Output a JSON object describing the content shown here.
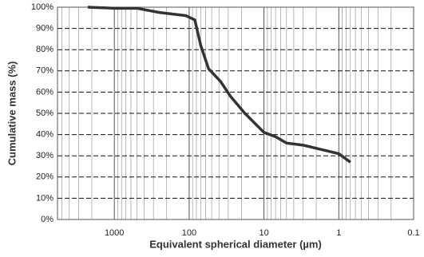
{
  "chart_data": {
    "type": "line",
    "x_label": "Equivalent spherical diameter (µm)",
    "y_label": "Cumulative mass (%)",
    "x_log": true,
    "x_reversed": true,
    "grid": true,
    "minor_grid": true,
    "xlim": [
      5750,
      0.1
    ],
    "xticks": [
      1000,
      100,
      10,
      1,
      0.1
    ],
    "ylim": [
      0,
      100
    ],
    "yticks": [
      {
        "value": 0,
        "label": "0%"
      },
      {
        "value": 10,
        "label": "10%"
      },
      {
        "value": 20,
        "label": "20%"
      },
      {
        "value": 30,
        "label": "30%"
      },
      {
        "value": 40,
        "label": "40%"
      },
      {
        "value": 50,
        "label": "50%"
      },
      {
        "value": 60,
        "label": "60%"
      },
      {
        "value": 70,
        "label": "70%"
      },
      {
        "value": 80,
        "label": "80%"
      },
      {
        "value": 90,
        "label": "90%"
      },
      {
        "value": 100,
        "label": "100%"
      }
    ],
    "color": "#333333",
    "x": [
      2270,
      1000,
      500,
      250,
      110,
      84,
      70,
      55,
      38,
      28,
      18,
      10,
      7,
      5,
      3,
      1,
      0.7
    ],
    "values": [
      100,
      99.5,
      99.5,
      97.5,
      96,
      94,
      82,
      71,
      65,
      58,
      50,
      41,
      39,
      36,
      35,
      31,
      27
    ]
  }
}
